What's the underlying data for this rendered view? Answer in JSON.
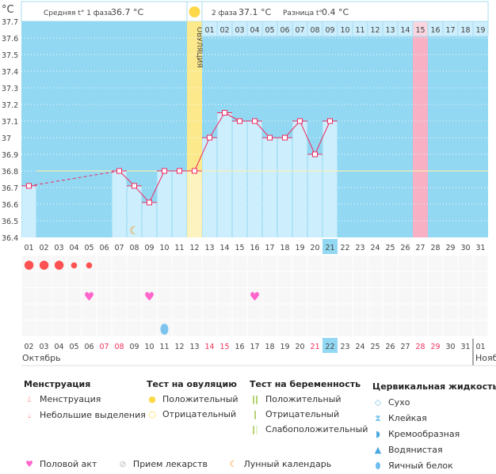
{
  "unit": "°C",
  "header": {
    "phase1_label": "Средняя t° 1 фаза",
    "phase1_value": "36.7 °C",
    "phase2_label": "2 фаза",
    "phase2_value": "37.1 °C",
    "diff_label": "Разница t°",
    "diff_value": "0.4 °C",
    "ovulation_label": "ОВУЛЯЦИЯ"
  },
  "chart_data": {
    "type": "bar",
    "ylim": [
      36.4,
      37.7
    ],
    "yticks": [
      "37.7",
      "37.6",
      "37.5",
      "37.4",
      "37.3",
      "37.2",
      "37.1",
      "37",
      "36.9",
      "36.8",
      "36.7",
      "36.6",
      "36.5",
      "36.4"
    ],
    "cycle_days": [
      "01",
      "02",
      "03",
      "04",
      "05",
      "06",
      "07",
      "08",
      "09",
      "10",
      "11",
      "12",
      "13",
      "14",
      "15",
      "16",
      "17",
      "18",
      "19",
      "20",
      "21",
      "22",
      "23",
      "24",
      "25",
      "26",
      "27",
      "28",
      "29",
      "30",
      "31"
    ],
    "temperatures": [
      36.71,
      null,
      null,
      null,
      null,
      null,
      36.8,
      36.71,
      36.61,
      36.8,
      36.8,
      36.8,
      37.0,
      37.15,
      37.1,
      37.1,
      37.0,
      37.0,
      37.1,
      36.9,
      37.1,
      null,
      null,
      null,
      null,
      null,
      null,
      null,
      null,
      null,
      null
    ],
    "coverline": 36.8,
    "ovulation_day": 12,
    "phase2_days": [
      "01",
      "02",
      "03",
      "04",
      "05",
      "06",
      "07",
      "08",
      "09",
      "10",
      "11",
      "12",
      "13",
      "14",
      "15",
      "16",
      "17",
      "18",
      "19"
    ],
    "highlight_pink_day": 27,
    "current_cycle_day": 21,
    "moon_day": 8,
    "menstruation": [
      {
        "day": 1,
        "type": "heavy"
      },
      {
        "day": 2,
        "type": "heavy"
      },
      {
        "day": 3,
        "type": "heavy"
      },
      {
        "day": 4,
        "type": "light"
      },
      {
        "day": 5,
        "type": "light"
      }
    ],
    "intercourse_days": [
      5,
      9,
      16
    ],
    "cervical": [
      {
        "day": 10,
        "type": "egg-white"
      }
    ],
    "dates": [
      "02",
      "03",
      "04",
      "05",
      "06",
      "07",
      "08",
      "09",
      "10",
      "11",
      "12",
      "13",
      "14",
      "15",
      "16",
      "17",
      "18",
      "19",
      "20",
      "21",
      "22",
      "23",
      "24",
      "25",
      "26",
      "27",
      "28",
      "29",
      "30",
      "31",
      "01"
    ],
    "weekend_dates": [
      "07",
      "08",
      "14",
      "15",
      "21",
      "28",
      "29"
    ],
    "today_date": "22",
    "month_label": "Октябрь",
    "next_month_label": "Нояб"
  },
  "legend": {
    "menstruation": {
      "title": "Менструация",
      "items": [
        "Менструация",
        "Небольшие выделения"
      ]
    },
    "ovulation_test": {
      "title": "Тест на овуляцию",
      "items": [
        "Положительный",
        "Отрицательный"
      ]
    },
    "pregnancy_test": {
      "title": "Тест на беременность",
      "items": [
        "Положительный",
        "Отрицательный",
        "Слабоположительный"
      ]
    },
    "cervical": {
      "title": "Цервикальная жидкость",
      "items": [
        "Сухо",
        "Клейкая",
        "Кремообразная",
        "Водянистая",
        "Яичный белок"
      ]
    },
    "other": [
      "Половой акт",
      "Прием лекарств",
      "Лунный календарь"
    ]
  },
  "colors": {
    "bg": "#92d8f2",
    "bar": "#cdeefc",
    "line": "#ee2a62",
    "ovulation": "#fbe98c",
    "pink": "#f7b0c4",
    "accent": "#fe5252"
  }
}
